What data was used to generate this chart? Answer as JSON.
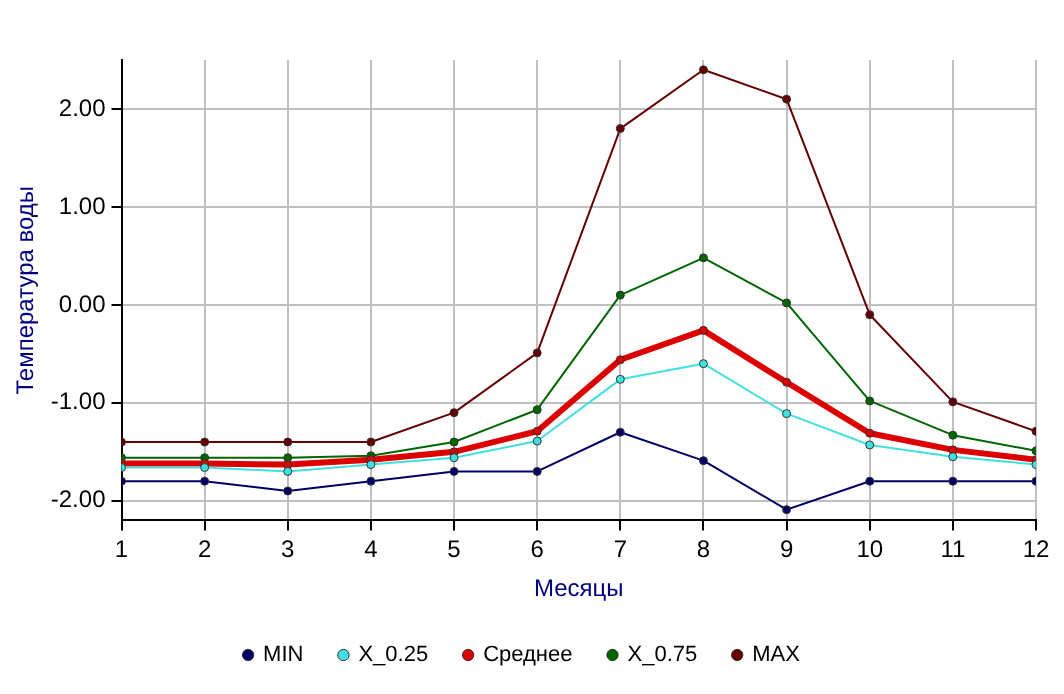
{
  "chart_data": {
    "type": "line",
    "xlabel": "Месяцы",
    "ylabel": "Температура воды",
    "x": [
      1,
      2,
      3,
      4,
      5,
      6,
      7,
      8,
      9,
      10,
      11,
      12
    ],
    "series": [
      {
        "name": "MIN",
        "color": "#000066",
        "values": [
          -1.8,
          -1.8,
          -1.9,
          -1.8,
          -1.7,
          -1.7,
          -1.3,
          -1.59,
          -2.09,
          -1.8,
          -1.8,
          -1.8
        ]
      },
      {
        "name": "X_0.25",
        "color": "#40e0e0",
        "values": [
          -1.66,
          -1.66,
          -1.7,
          -1.63,
          -1.56,
          -1.39,
          -0.76,
          -0.6,
          -1.11,
          -1.43,
          -1.55,
          -1.63
        ]
      },
      {
        "name": "Среднее",
        "color": "#dd0000",
        "values": [
          -1.62,
          -1.62,
          -1.63,
          -1.58,
          -1.5,
          -1.29,
          -0.56,
          -0.26,
          -0.79,
          -1.31,
          -1.48,
          -1.58
        ]
      },
      {
        "name": "X_0.75",
        "color": "#006600",
        "values": [
          -1.56,
          -1.56,
          -1.56,
          -1.54,
          -1.4,
          -1.07,
          0.1,
          0.48,
          0.02,
          -0.98,
          -1.33,
          -1.49
        ]
      },
      {
        "name": "MAX",
        "color": "#660000",
        "values": [
          -1.4,
          -1.4,
          -1.4,
          -1.4,
          -1.1,
          -0.49,
          1.8,
          2.4,
          2.1,
          -0.1,
          -0.99,
          -1.29
        ]
      }
    ],
    "xlim": [
      1,
      12
    ],
    "xticks": [
      1,
      2,
      3,
      4,
      5,
      6,
      7,
      8,
      9,
      10,
      11,
      12
    ],
    "ylim": [
      -2.2,
      2.5
    ],
    "yticks": [
      {
        "value": -2,
        "label": "-2.00"
      },
      {
        "value": -1,
        "label": "-1.00"
      },
      {
        "value": 0,
        "label": "0.00"
      },
      {
        "value": 1,
        "label": "1.00"
      },
      {
        "value": 2,
        "label": "2.00"
      }
    ],
    "grid": true,
    "legend": "bottom",
    "marker": "circle",
    "line_style": "solid"
  }
}
